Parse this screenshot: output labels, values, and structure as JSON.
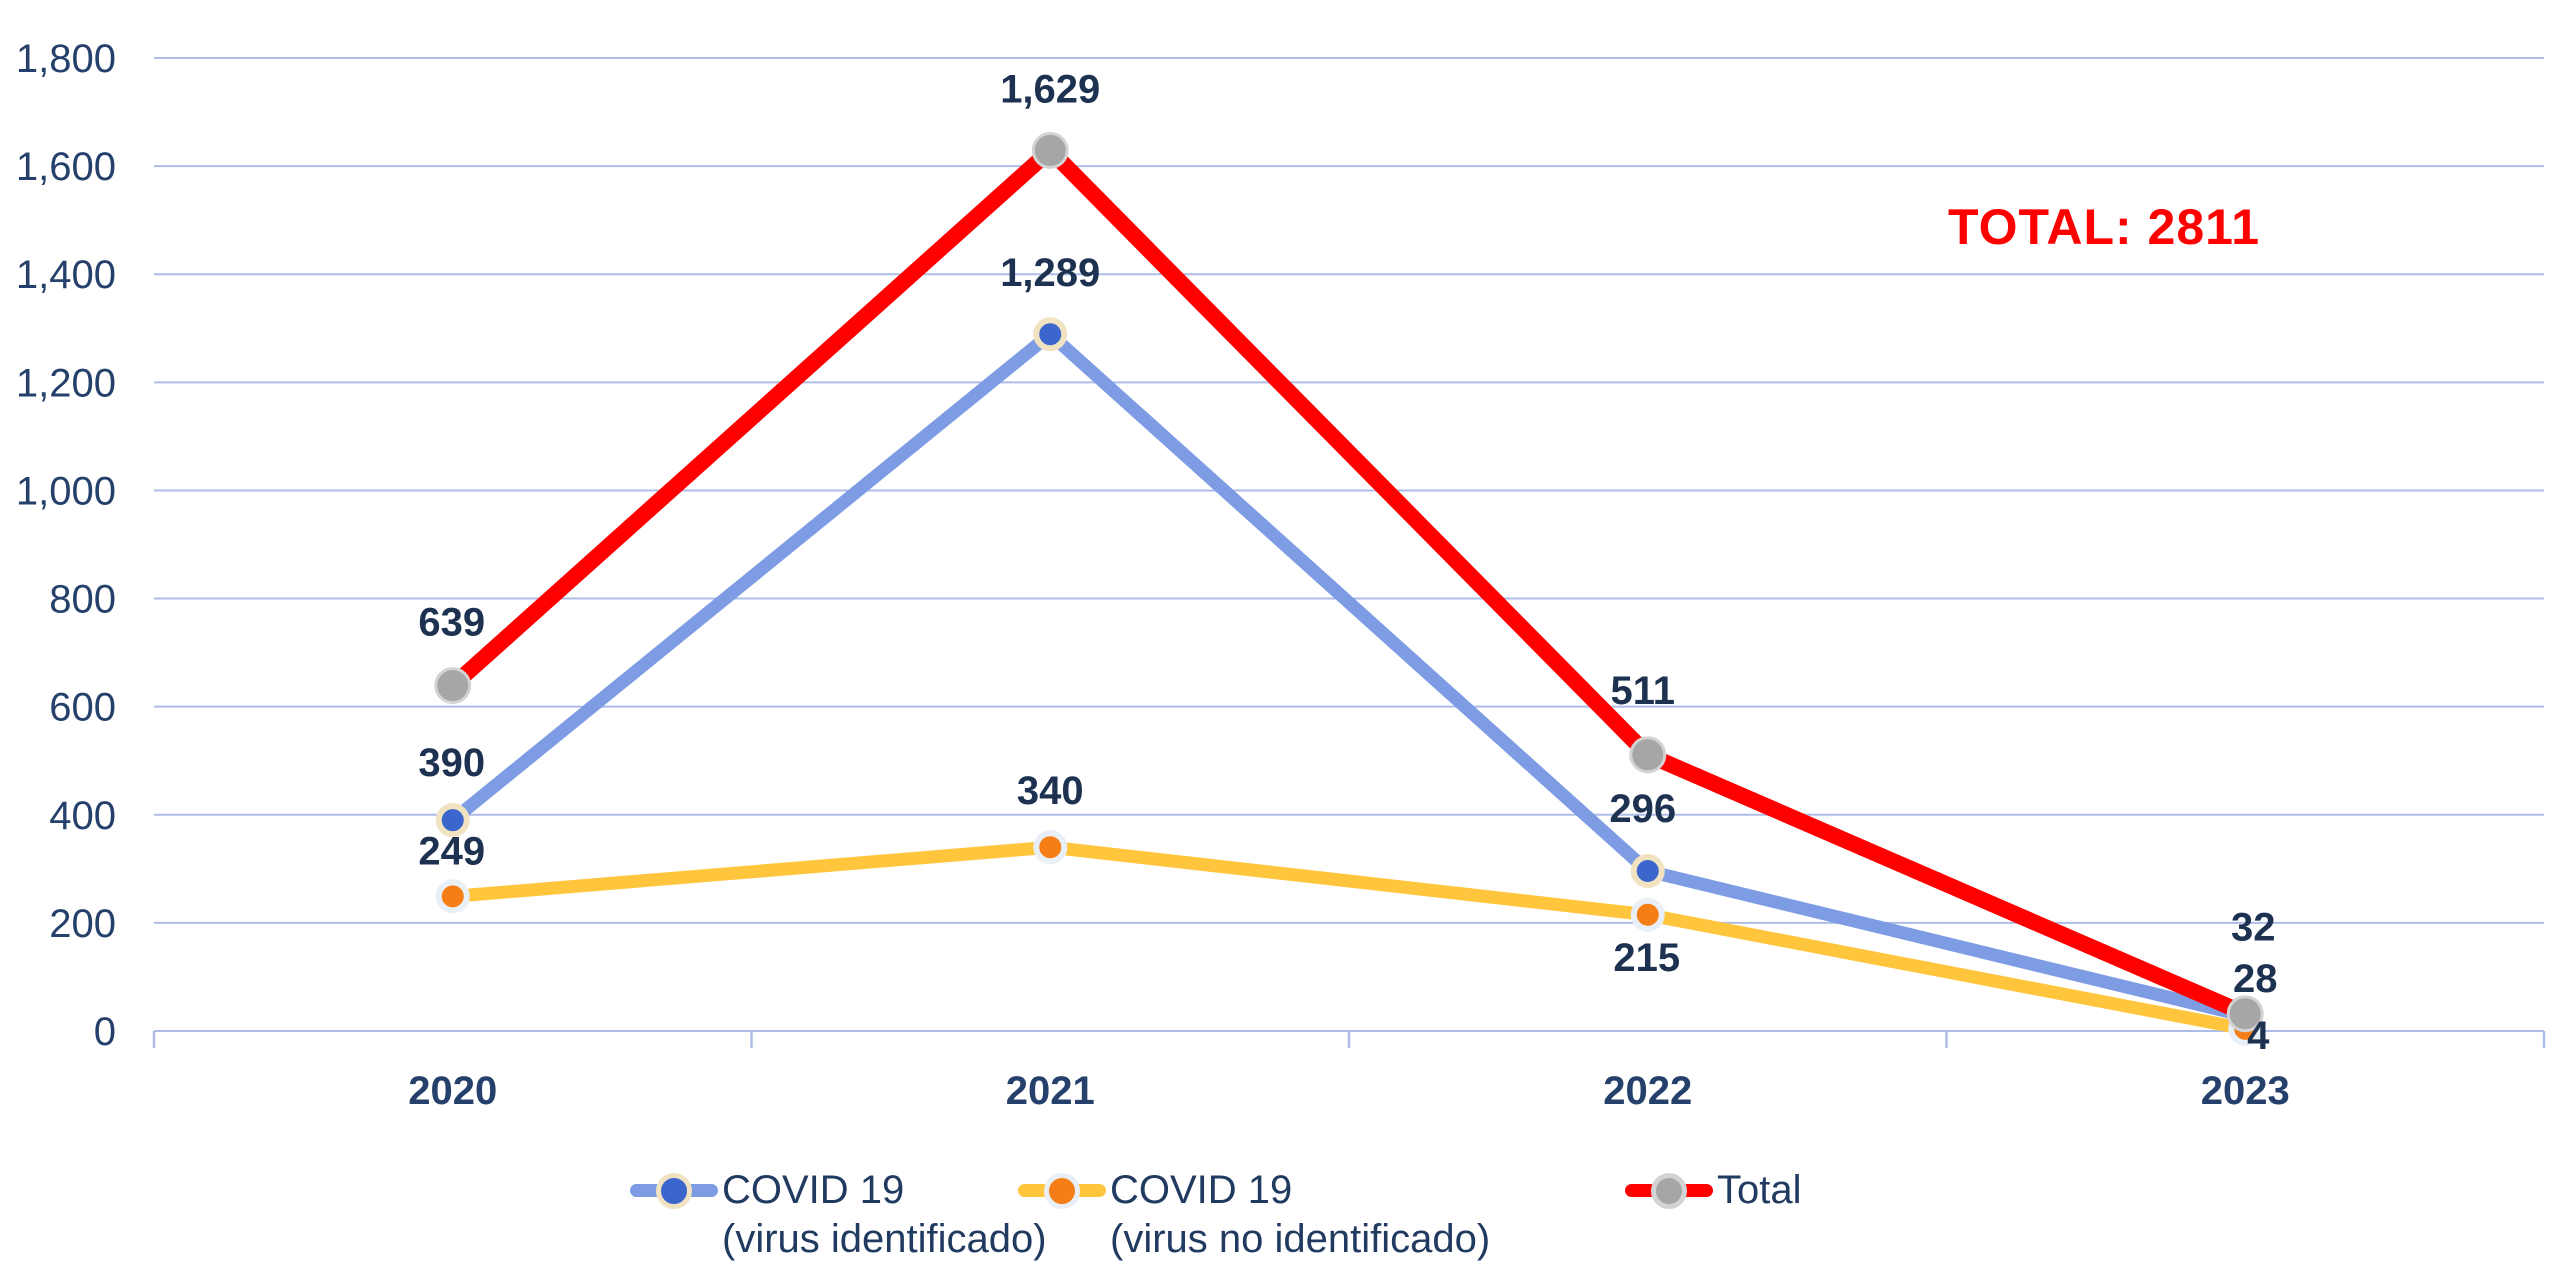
{
  "chart_data": {
    "type": "line",
    "title": "",
    "xlabel": "",
    "ylabel": "",
    "categories": [
      "2020",
      "2021",
      "2022",
      "2023"
    ],
    "series": [
      {
        "name": "COVID 19 (virus identificado)",
        "legend_line1": "COVID 19",
        "legend_line2": "(virus identificado)",
        "values": [
          390,
          1289,
          296,
          28
        ],
        "line_color": "#7E9CE3",
        "line_width": 13,
        "marker_color": "#3B66CC",
        "marker_ring": "#F1E2C2",
        "marker_radius": 14,
        "marker_ring_width": 6,
        "label_offsets": [
          [
            -1,
            -58
          ],
          [
            0,
            -62
          ],
          [
            -5,
            -63
          ],
          [
            10,
            -38
          ]
        ]
      },
      {
        "name": "COVID 19 (virus no identificado)",
        "legend_line1": "COVID 19",
        "legend_line2": "(virus no identificado)",
        "values": [
          249,
          340,
          215,
          4
        ],
        "line_color": "#FFC53D",
        "line_width": 13,
        "marker_color": "#F57E17",
        "marker_ring": "#E9EFF7",
        "marker_radius": 14,
        "marker_ring_width": 6,
        "label_offsets": [
          [
            -1,
            -46
          ],
          [
            0,
            -57
          ],
          [
            -1,
            42
          ],
          [
            13,
            6
          ]
        ]
      },
      {
        "name": "Total",
        "legend_line1": "Total",
        "legend_line2": "",
        "values": [
          639,
          1629,
          511,
          32
        ],
        "line_color": "#FF0000",
        "line_width": 16,
        "marker_color": "#A6A6A6",
        "marker_ring": "#D3D3D3",
        "marker_radius": 17,
        "marker_ring_width": 3,
        "label_offsets": [
          [
            -1,
            -64
          ],
          [
            0,
            -62
          ],
          [
            -5,
            -65
          ],
          [
            8,
            -87
          ]
        ]
      }
    ],
    "ylim": [
      0,
      1800
    ],
    "ytick_step": 200,
    "ytick_labels": [
      "0",
      "200",
      "400",
      "600",
      "800",
      "1,000",
      "1,200",
      "1,400",
      "1,600",
      "1,800"
    ],
    "grid": true,
    "grid_color": "#AEBDE8",
    "axis_text_color": "#24406B",
    "label_color": "#1D3150",
    "legend_position": "bottom",
    "annotation": {
      "text": "TOTAL: 2811",
      "color": "#FF0000"
    }
  }
}
